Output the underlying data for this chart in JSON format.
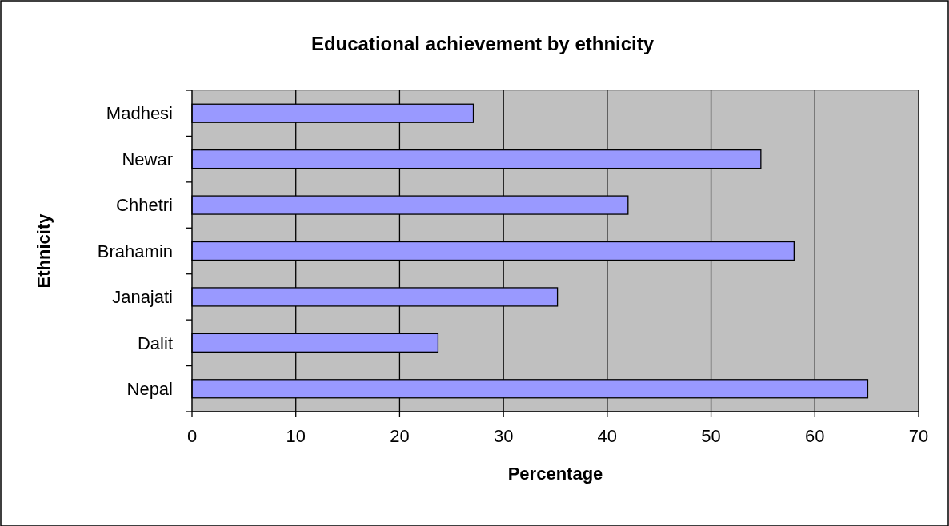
{
  "chart_data": {
    "type": "bar",
    "orientation": "horizontal",
    "title": "Educational achievement by ethnicity",
    "xlabel": "Percentage",
    "ylabel": "Ethnicity",
    "categories": [
      "Madhesi",
      "Newar",
      "Chhetri",
      "Brahamin",
      "Janajati",
      "Dalit",
      "Nepal"
    ],
    "values": [
      27.1,
      54.8,
      42.0,
      58.0,
      35.2,
      23.7,
      65.1
    ],
    "color": "#9999ff",
    "xlim": [
      0,
      70
    ],
    "xticks": [
      0,
      10,
      20,
      30,
      40,
      50,
      60,
      70
    ],
    "grid": "x"
  }
}
